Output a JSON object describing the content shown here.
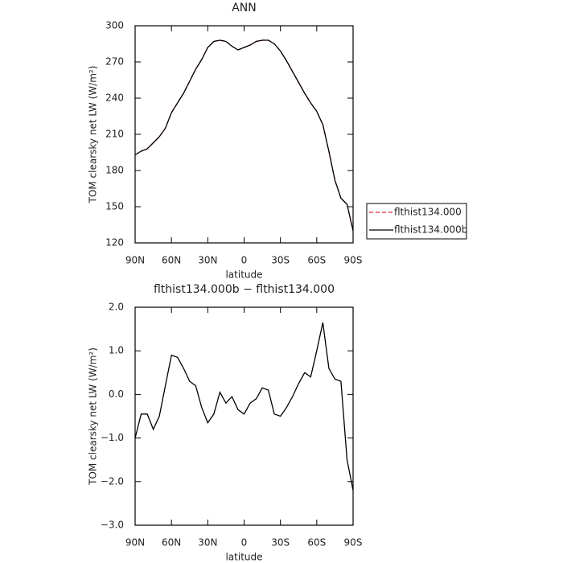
{
  "chart_data": [
    {
      "type": "line",
      "title": "ANN",
      "xlabel": "latitude",
      "ylabel": "TOM clearsky net LW (W/m²)",
      "x": [
        90,
        85,
        80,
        75,
        70,
        65,
        60,
        55,
        50,
        45,
        40,
        35,
        30,
        25,
        20,
        15,
        10,
        5,
        0,
        -5,
        -10,
        -15,
        -20,
        -25,
        -30,
        -35,
        -40,
        -45,
        -50,
        -55,
        -60,
        -65,
        -70,
        -75,
        -80,
        -85,
        -90
      ],
      "series": [
        {
          "name": "flthist134.000",
          "color": "#e0262a",
          "linestyle": "dashed",
          "values": [
            193,
            196,
            198,
            203,
            208,
            215,
            228,
            236,
            244,
            254,
            264,
            272,
            282,
            287,
            288,
            287,
            283,
            280,
            282,
            284,
            287,
            288,
            288,
            285,
            279,
            271,
            262,
            253,
            244,
            236,
            229,
            218,
            196,
            172,
            157,
            152,
            130
          ]
        },
        {
          "name": "flthist134.000b",
          "color": "#000000",
          "linestyle": "solid",
          "values": [
            193,
            196,
            198,
            203,
            208,
            215,
            228,
            236,
            244,
            254,
            264,
            272,
            282,
            287,
            288,
            287,
            283,
            280,
            282,
            284,
            287,
            288,
            288,
            285,
            279,
            271,
            262,
            253,
            244,
            236,
            229,
            218,
            196,
            172,
            157,
            152,
            130
          ]
        }
      ],
      "xlim": [
        90,
        -90
      ],
      "xticks": [
        {
          "value": 90,
          "label": "90N"
        },
        {
          "value": 60,
          "label": "60N"
        },
        {
          "value": 30,
          "label": "30N"
        },
        0,
        {
          "value": -30,
          "label": "30S"
        },
        {
          "value": -60,
          "label": "60S"
        },
        {
          "value": -90,
          "label": "90S"
        }
      ],
      "ylim": [
        120,
        300
      ],
      "yticks": [
        120,
        150,
        180,
        210,
        240,
        270,
        300
      ],
      "legend": "right"
    },
    {
      "type": "line",
      "title": "flthist134.000b − flthist134.000",
      "xlabel": "latitude",
      "ylabel": "TOM clearsky net LW (W/m²)",
      "x": [
        90,
        85,
        80,
        75,
        70,
        65,
        60,
        55,
        50,
        45,
        40,
        35,
        30,
        25,
        20,
        15,
        10,
        5,
        0,
        -5,
        -10,
        -15,
        -20,
        -25,
        -30,
        -35,
        -40,
        -45,
        -50,
        -55,
        -60,
        -65,
        -70,
        -75,
        -80,
        -85,
        -90
      ],
      "series": [
        {
          "color": "#000000",
          "linestyle": "solid",
          "values": [
            -1.0,
            -0.45,
            -0.45,
            -0.8,
            -0.5,
            0.2,
            0.9,
            0.85,
            0.6,
            0.3,
            0.2,
            -0.3,
            -0.65,
            -0.45,
            0.05,
            -0.2,
            -0.05,
            -0.35,
            -0.45,
            -0.2,
            -0.1,
            0.15,
            0.1,
            -0.45,
            -0.5,
            -0.3,
            -0.05,
            0.25,
            0.5,
            0.4,
            1.0,
            1.65,
            0.6,
            0.35,
            0.3,
            -1.5,
            -2.2
          ]
        }
      ],
      "xlim": [
        90,
        -90
      ],
      "xticks": [
        {
          "value": 90,
          "label": "90N"
        },
        {
          "value": 60,
          "label": "60N"
        },
        {
          "value": 30,
          "label": "30N"
        },
        0,
        {
          "value": -30,
          "label": "30S"
        },
        {
          "value": -60,
          "label": "60S"
        },
        {
          "value": -90,
          "label": "90S"
        }
      ],
      "ylim": [
        -3,
        2
      ],
      "yticks": [
        {
          "value": -3,
          "label": "−3.0"
        },
        {
          "value": -2,
          "label": "−2.0"
        },
        {
          "value": -1,
          "label": "−1.0"
        },
        {
          "value": 0,
          "label": "0.0"
        },
        {
          "value": 1,
          "label": "1.0"
        },
        {
          "value": 2,
          "label": "2.0"
        }
      ]
    }
  ]
}
